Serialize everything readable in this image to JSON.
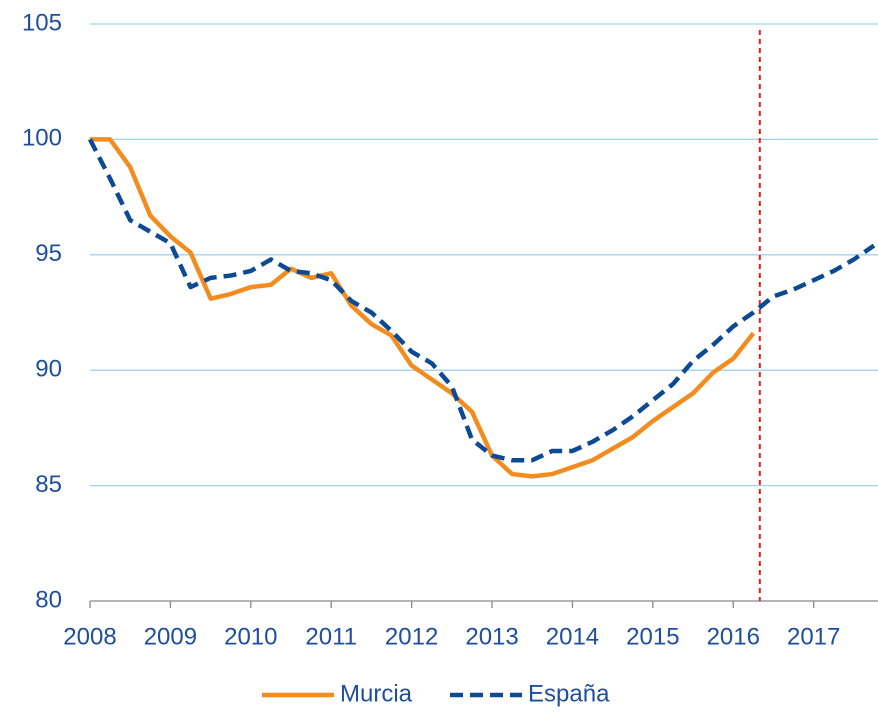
{
  "chart_data": {
    "type": "line",
    "x": [
      2008,
      2008.25,
      2008.5,
      2008.75,
      2009,
      2009.25,
      2009.5,
      2009.75,
      2010,
      2010.25,
      2010.5,
      2010.75,
      2011,
      2011.25,
      2011.5,
      2011.75,
      2012,
      2012.25,
      2012.5,
      2012.75,
      2013,
      2013.25,
      2013.5,
      2013.75,
      2014,
      2014.25,
      2014.5,
      2014.75,
      2015,
      2015.25,
      2015.5,
      2015.75,
      2016,
      2016.25,
      2016.5,
      2016.75,
      2017,
      2017.25,
      2017.5,
      2017.75
    ],
    "series": [
      {
        "name": "Murcia",
        "color": "#f28c1e",
        "dash": false,
        "values": [
          100,
          100,
          98.8,
          96.7,
          95.8,
          95.1,
          93.1,
          93.3,
          93.6,
          93.7,
          94.4,
          94.0,
          94.2,
          92.8,
          92.0,
          91.5,
          90.2,
          89.6,
          89.0,
          88.2,
          86.3,
          85.5,
          85.4,
          85.5,
          85.8,
          86.1,
          86.6,
          87.1,
          87.8,
          88.4,
          89.0,
          89.9,
          90.5,
          91.6,
          null,
          null,
          null,
          null,
          null,
          null
        ]
      },
      {
        "name": "España",
        "color": "#0d4a94",
        "dash": true,
        "values": [
          100,
          98.3,
          96.5,
          96.0,
          95.5,
          93.6,
          94.0,
          94.1,
          94.3,
          94.8,
          94.3,
          94.2,
          93.9,
          93.0,
          92.5,
          91.7,
          90.8,
          90.3,
          89.3,
          87.0,
          86.3,
          86.1,
          86.1,
          86.5,
          86.5,
          86.9,
          87.4,
          88.0,
          88.7,
          89.4,
          90.4,
          91.1,
          91.9,
          92.5,
          93.2,
          93.5,
          93.9,
          94.3,
          94.8,
          95.4
        ]
      }
    ],
    "xlim": [
      2008,
      2017.8
    ],
    "xticks": [
      2008,
      2009,
      2010,
      2011,
      2012,
      2013,
      2014,
      2015,
      2016,
      2017
    ],
    "ylim": [
      80,
      105
    ],
    "yticks": [
      80,
      85,
      90,
      95,
      100,
      105
    ],
    "grid": true,
    "reference_line": {
      "x": 2016.33,
      "color": "#e0201b"
    },
    "legend": "bottom"
  }
}
